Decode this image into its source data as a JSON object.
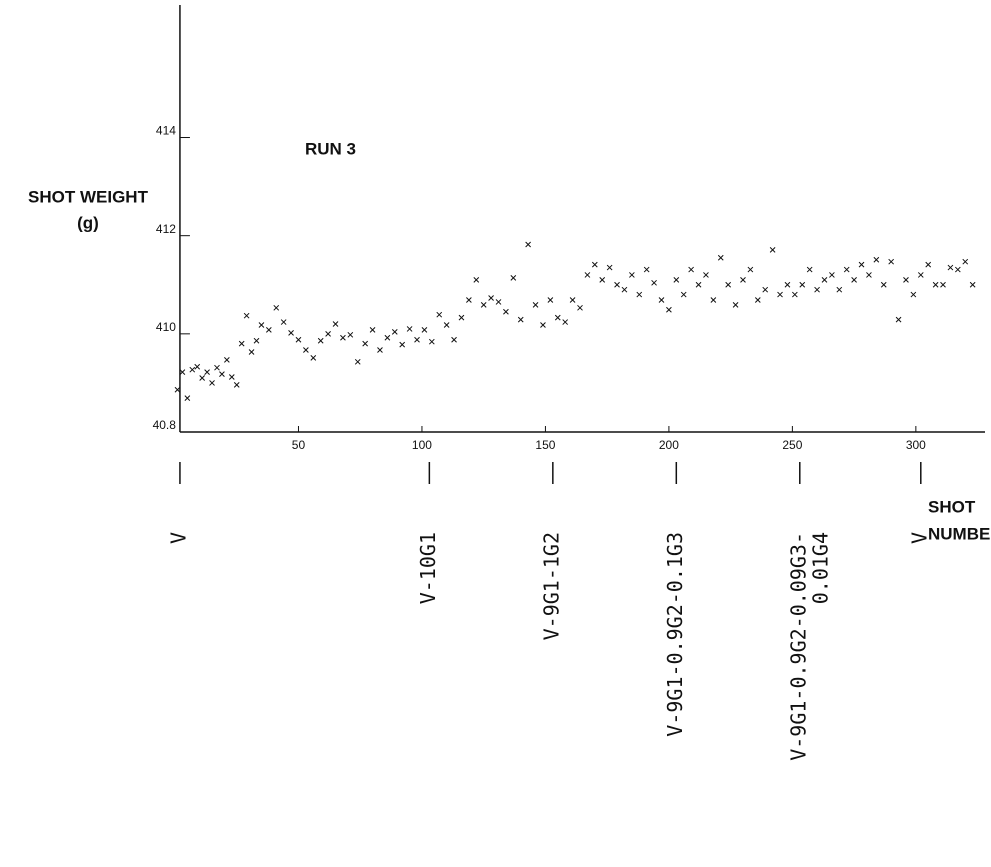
{
  "chart_data": {
    "type": "scatter",
    "annotation": "RUN 3",
    "y_label": [
      "SHOT WEIGHT",
      "(g)"
    ],
    "x_label": [
      "SHOT",
      "NUMBER"
    ],
    "color": "#111111",
    "xlim": [
      0,
      328
    ],
    "ylim": [
      40.8,
      41.67
    ],
    "xticks": [
      50,
      100,
      150,
      200,
      250,
      300
    ],
    "yticks": [
      40.8,
      {
        "value": 41.0,
        "label": "410"
      },
      {
        "value": 41.2,
        "label": "412"
      },
      {
        "value": 41.4,
        "label": "414"
      }
    ],
    "x": [
      1,
      3,
      5,
      7,
      9,
      11,
      13,
      15,
      17,
      19,
      21,
      23,
      25,
      27,
      29,
      31,
      33,
      35,
      38,
      41,
      44,
      47,
      50,
      53,
      56,
      59,
      62,
      65,
      68,
      71,
      74,
      77,
      80,
      83,
      86,
      89,
      92,
      95,
      98,
      101,
      104,
      107,
      110,
      113,
      116,
      119,
      122,
      125,
      128,
      131,
      134,
      137,
      140,
      143,
      146,
      149,
      152,
      155,
      158,
      161,
      164,
      167,
      170,
      173,
      176,
      179,
      182,
      185,
      188,
      191,
      194,
      197,
      200,
      203,
      206,
      209,
      212,
      215,
      218,
      221,
      224,
      227,
      230,
      233,
      236,
      239,
      242,
      245,
      248,
      251,
      254,
      257,
      260,
      263,
      266,
      269,
      272,
      275,
      278,
      281,
      284,
      287,
      290,
      293,
      296,
      299,
      302,
      305,
      308,
      311,
      314,
      317,
      320,
      323
    ],
    "y": [
      40.886,
      40.922,
      40.869,
      40.927,
      40.933,
      40.91,
      40.922,
      40.9,
      40.931,
      40.918,
      40.947,
      40.912,
      40.896,
      40.98,
      41.037,
      40.963,
      40.986,
      41.018,
      41.008,
      41.053,
      41.024,
      41.002,
      40.988,
      40.967,
      40.951,
      40.986,
      41.0,
      41.02,
      40.992,
      40.998,
      40.943,
      40.98,
      41.008,
      40.967,
      40.992,
      41.004,
      40.978,
      41.01,
      40.988,
      41.008,
      40.984,
      41.039,
      41.018,
      40.988,
      41.033,
      41.069,
      41.11,
      41.059,
      41.073,
      41.065,
      41.045,
      41.114,
      41.029,
      41.182,
      41.059,
      41.018,
      41.069,
      41.033,
      41.024,
      41.069,
      41.053,
      41.12,
      41.141,
      41.11,
      41.135,
      41.1,
      41.09,
      41.12,
      41.08,
      41.131,
      41.104,
      41.069,
      41.049,
      41.11,
      41.08,
      41.131,
      41.1,
      41.12,
      41.069,
      41.155,
      41.1,
      41.059,
      41.11,
      41.131,
      41.069,
      41.09,
      41.171,
      41.08,
      41.1,
      41.08,
      41.1,
      41.131,
      41.09,
      41.11,
      41.12,
      41.09,
      41.131,
      41.11,
      41.141,
      41.12,
      41.151,
      41.1,
      41.147,
      41.029,
      41.11,
      41.08,
      41.12,
      41.141,
      41.1,
      41.1,
      41.135,
      41.131,
      41.147,
      41.1
    ],
    "markers": [
      {
        "x": 2,
        "lines": [
          "V"
        ]
      },
      {
        "x": 103,
        "lines": [
          "V-10G1"
        ]
      },
      {
        "x": 153,
        "lines": [
          "V-9G1-1G2"
        ]
      },
      {
        "x": 203,
        "lines": [
          "V-9G1-0.9G2-0.1G3"
        ]
      },
      {
        "x": 253,
        "lines": [
          "V-9G1-0.9G2-0.09G3-",
          "0.01G4"
        ]
      },
      {
        "x": 302,
        "lines": [
          "V"
        ]
      }
    ]
  }
}
